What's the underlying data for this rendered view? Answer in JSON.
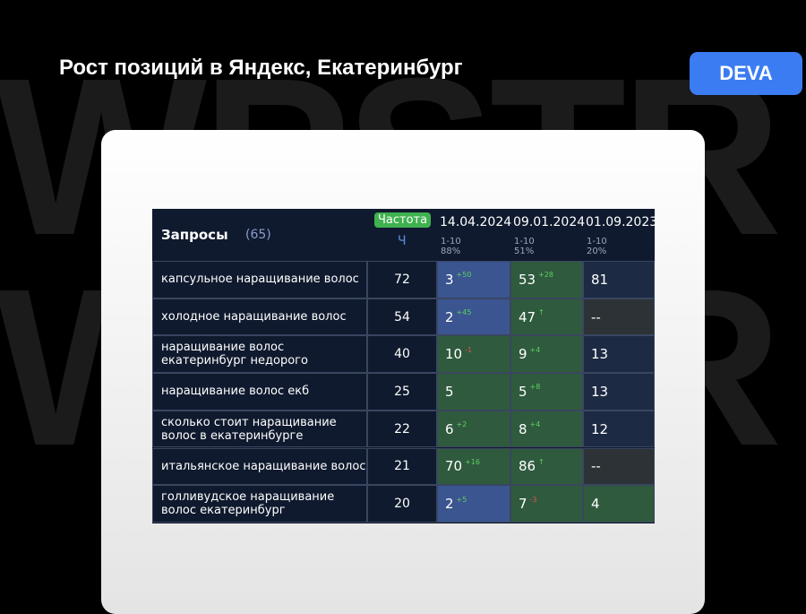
{
  "header": {
    "title": "Рост позиций в Яндекс, Екатеринбург",
    "badge": "DEVA",
    "watermark": "WPSTR"
  },
  "table": {
    "query_header": "Запросы",
    "query_count": "(65)",
    "freq_header": "Частота",
    "freq_sub": "Ч",
    "dates": [
      {
        "date": "14.04.2024",
        "range": "1-10",
        "share": "88%"
      },
      {
        "date": "09.01.2024",
        "range": "1-10",
        "share": "51%"
      },
      {
        "date": "01.09.2023",
        "range": "1-10",
        "share": "20%"
      }
    ],
    "rows": [
      {
        "query": "капсульное наращивание волос",
        "freq": 72,
        "cells": [
          {
            "value": "3",
            "delta": "+50",
            "bg": "#3a5590"
          },
          {
            "value": "53",
            "delta": "+28",
            "bg": "#2f5a3e"
          },
          {
            "value": "81",
            "bg": "#1c2a44"
          }
        ]
      },
      {
        "query": "холодное наращивание волос",
        "freq": 54,
        "cells": [
          {
            "value": "2",
            "delta": "+45",
            "bg": "#3a5590"
          },
          {
            "value": "47",
            "delta": "↑",
            "bg": "#2f5a3e"
          },
          {
            "value": "--",
            "bg": "#2c3236"
          }
        ]
      },
      {
        "query": "наращивание волос екатеринбург недорого",
        "freq": 40,
        "cells": [
          {
            "value": "10",
            "delta": "-1",
            "bg": "#2f5a3e"
          },
          {
            "value": "9",
            "delta": "+4",
            "bg": "#2f5a3e"
          },
          {
            "value": "13",
            "bg": "#1c2a44"
          }
        ]
      },
      {
        "query": "наращивание волос екб",
        "freq": 25,
        "cells": [
          {
            "value": "5",
            "bg": "#2f5a3e"
          },
          {
            "value": "5",
            "delta": "+8",
            "bg": "#2f5a3e"
          },
          {
            "value": "13",
            "bg": "#1c2a44"
          }
        ]
      },
      {
        "query": "сколько стоит наращивание волос в екатеринбурге",
        "freq": 22,
        "cells": [
          {
            "value": "6",
            "delta": "+2",
            "bg": "#2f5a3e"
          },
          {
            "value": "8",
            "delta": "+4",
            "bg": "#2f5a3e"
          },
          {
            "value": "12",
            "bg": "#1c2a44"
          }
        ]
      },
      {
        "query": "итальянское наращивание волос",
        "freq": 21,
        "cells": [
          {
            "value": "70",
            "delta": "+16",
            "bg": "#2f5a3e"
          },
          {
            "value": "86",
            "delta": "↑",
            "bg": "#2f5a3e"
          },
          {
            "value": "--",
            "bg": "#2c3236"
          }
        ]
      },
      {
        "query": "голливудское наращивание волос екатеринбург",
        "freq": 20,
        "cells": [
          {
            "value": "2",
            "delta": "+5",
            "bg": "#3a5590"
          },
          {
            "value": "7",
            "delta": "-3",
            "bg": "#2f5a3e"
          },
          {
            "value": "4",
            "bg": "#2f5a3e"
          }
        ]
      }
    ]
  }
}
